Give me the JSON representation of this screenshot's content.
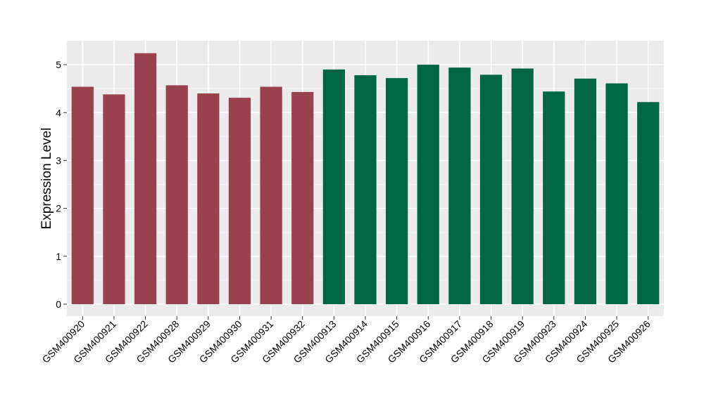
{
  "chart_data": {
    "type": "bar",
    "title": "",
    "xlabel": "",
    "ylabel": "Expression Level",
    "ylim": [
      -0.25,
      5.5
    ],
    "yticks": [
      0,
      1,
      2,
      3,
      4,
      5
    ],
    "grid": true,
    "legend": "none",
    "panel_background": "#ebebeb",
    "categories": [
      "GSM400920",
      "GSM400921",
      "GSM400922",
      "GSM400928",
      "GSM400929",
      "GSM400930",
      "GSM400931",
      "GSM400932",
      "GSM400913",
      "GSM400914",
      "GSM400915",
      "GSM400916",
      "GSM400917",
      "GSM400918",
      "GSM400919",
      "GSM400923",
      "GSM400924",
      "GSM400925",
      "GSM400926"
    ],
    "values": [
      4.54,
      4.38,
      5.24,
      4.57,
      4.4,
      4.31,
      4.54,
      4.43,
      4.9,
      4.78,
      4.72,
      5.0,
      4.94,
      4.79,
      4.92,
      4.44,
      4.71,
      4.61,
      4.22
    ],
    "groups": [
      "red",
      "red",
      "red",
      "red",
      "red",
      "red",
      "red",
      "red",
      "green",
      "green",
      "green",
      "green",
      "green",
      "green",
      "green",
      "green",
      "green",
      "green",
      "green"
    ],
    "colors": {
      "red": "#9a4150",
      "green": "#006644"
    }
  }
}
